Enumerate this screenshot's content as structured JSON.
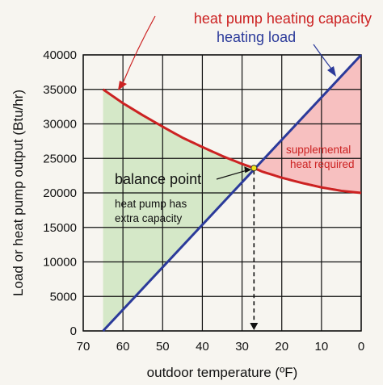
{
  "chart_data": {
    "type": "line",
    "xlabel": "outdoor temperature (ºF)",
    "ylabel": "Load or heat pump output (Btu/hr)",
    "xlim": [
      70,
      0
    ],
    "ylim": [
      0,
      40000
    ],
    "x_reversed": true,
    "x_ticks": [
      70,
      60,
      50,
      40,
      30,
      20,
      10,
      0
    ],
    "y_ticks": [
      0,
      5000,
      10000,
      15000,
      20000,
      25000,
      30000,
      35000,
      40000
    ],
    "grid": true,
    "series": [
      {
        "name": "heat pump heating capacity",
        "color": "#cc2222",
        "x": [
          65,
          60,
          55,
          50,
          45,
          40,
          35,
          30,
          27,
          25,
          20,
          15,
          10,
          5,
          0
        ],
        "y": [
          35000,
          33000,
          31250,
          29600,
          28000,
          26650,
          25350,
          24200,
          23600,
          23100,
          22200,
          21450,
          20800,
          20300,
          20000
        ]
      },
      {
        "name": "heating load",
        "color": "#2b3a9a",
        "x": [
          65,
          0
        ],
        "y": [
          0,
          40000
        ]
      }
    ],
    "balance_point": {
      "x": 27,
      "y": 23600,
      "label": "balance point"
    },
    "regions": [
      {
        "label": "heat pump has extra capacity",
        "color": "#d5e8c8"
      },
      {
        "label": "supplemental heat required",
        "color": "#f7c0c0"
      }
    ]
  },
  "annotations": {
    "capacity_title": "heat pump heating capacity",
    "load_title": "heating load",
    "balance_label": "balance point",
    "extra_line1": "heat pump has",
    "extra_line2": "extra capacity",
    "supp_line1": "supplemental",
    "supp_line2": "heat required"
  }
}
